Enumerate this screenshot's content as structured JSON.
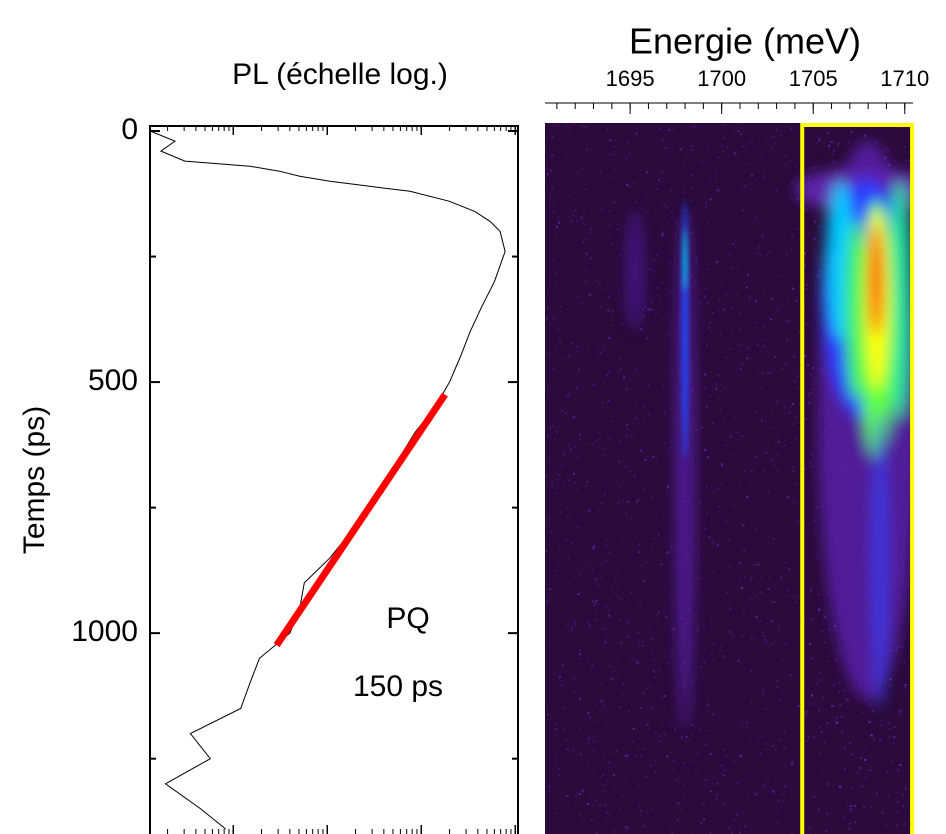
{
  "chart_data": [
    {
      "type": "line",
      "title": "PL (échelle log.)",
      "y_label": "Temps (ps)",
      "annotations": [
        "PQ",
        "150 ps"
      ],
      "xscale": "log",
      "xlim": [
        1.3,
        10700
      ],
      "xticks": [
        10,
        100,
        1000,
        10000
      ],
      "ylim": [
        -10,
        1400
      ],
      "yticks": [
        0,
        500,
        1000
      ],
      "y_inverted": true,
      "series": [
        {
          "color": "#000000",
          "x": [
            1.3,
            2.4,
            1.7,
            3.06,
            15,
            31,
            51,
            107,
            283,
            760,
            2000,
            3700,
            5400,
            6900,
            7800,
            6000,
            4400,
            3300,
            2600,
            2000,
            1400,
            860,
            590,
            410,
            283,
            175,
            107,
            57,
            51,
            40,
            19,
            15,
            12,
            3.5,
            5.7,
            1.9,
            4.5,
            8.3
          ],
          "values": [
            0,
            20,
            40,
            60,
            70,
            80,
            90,
            100,
            110,
            120,
            140,
            160,
            180,
            200,
            240,
            300,
            350,
            400,
            450,
            500,
            550,
            600,
            650,
            700,
            750,
            800,
            850,
            900,
            950,
            1000,
            1050,
            1100,
            1150,
            1200,
            1250,
            1300,
            1350,
            1390
          ]
        },
        {
          "color": "#ff0000",
          "x": [
            1790,
            29
          ],
          "values": [
            525,
            1024
          ]
        }
      ]
    },
    {
      "type": "heatmap",
      "x_label": "Energie (meV)",
      "xlim": [
        1690.35,
        1710.45
      ],
      "xticks": [
        1695,
        1700,
        1705,
        1710
      ],
      "ylim": [
        -10,
        1400
      ],
      "highlight": {
        "color": "#ffff00",
        "xlim": [
          1704.4,
          1710.4
        ]
      }
    }
  ]
}
